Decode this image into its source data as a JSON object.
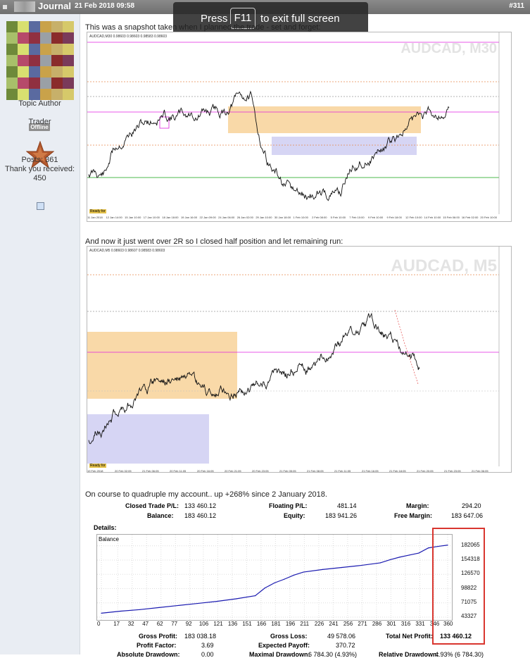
{
  "header": {
    "username": "Journal",
    "date": "21 Feb 2018 09:58",
    "post_number": "#311"
  },
  "overlay": {
    "press": "Press",
    "key": "F11",
    "exit": "to exit full screen"
  },
  "sidebar": {
    "role": "Topic Author",
    "status": "Offline",
    "rank": "Trader",
    "posts": "Posts: 361",
    "thanks_label": "Thank you received:",
    "thanks_count": "450"
  },
  "post": {
    "text1": "This was a snapshot taken when I planned the trade - set and forget:",
    "text2": "And now it just went over 2R so I closed half position and let remaining run:",
    "text3": "On course to quadruple my account.. up +268% since 2 January 2018."
  },
  "chart1": {
    "watermark": "AUDCAD, M30",
    "header": "AUDCAD,M30 0.98603 0.98603 0.98583 0.98603",
    "tag": "Ready for",
    "x_labels": [
      "11 Jan 2018",
      "12 Jan 14:00",
      "15 Jan 10:00",
      "17 Jan 10:00",
      "18 Jan 18:00",
      "19 Jan 16:00",
      "22 Jan 09:00",
      "24 Jan 06:00",
      "26 Jan 02:00",
      "29 Jan 10:00",
      "30 Jan 18:00",
      "1 Feb 10:00",
      "2 Feb 08:00",
      "5 Feb 10:00",
      "7 Feb 10:00",
      "9 Feb 10:00",
      "9 Feb 18:00",
      "12 Feb 10:00",
      "14 Feb 10:00",
      "15 Feb 06:00",
      "16 Feb 02:00",
      "20 Feb 10:00"
    ]
  },
  "chart2": {
    "watermark": "AUDCAD, M5",
    "header": "AUDCAD,M5 0.98603 0.98607 0.98583 0.98603",
    "tag": "Ready for",
    "x_labels": [
      "19 Feb 2018",
      "20 Feb 02:05",
      "21 Feb 06:05",
      "20 Feb 11:05",
      "20 Feb 16:05",
      "20 Feb 21:05",
      "20 Feb 23:05",
      "21 Feb 05:05",
      "21 Feb 08:05",
      "21 Feb 11:05",
      "21 Feb 16:05",
      "21 Feb 18:05",
      "21 Feb 20:05",
      "21 Feb 23:05",
      "21 Feb 06:05"
    ]
  },
  "account": {
    "closed_label": "Closed Trade P/L:",
    "closed": "133 460.12",
    "floating_label": "Floating P/L:",
    "floating": "481.14",
    "margin_label": "Margin:",
    "margin": "294.20",
    "balance_label": "Balance:",
    "balance": "183 460.12",
    "equity_label": "Equity:",
    "equity": "183 941.26",
    "free_label": "Free Margin:",
    "free": "183 647.06",
    "details": "Details:",
    "legend": "Balance"
  },
  "stats": {
    "gross_profit_label": "Gross Profit:",
    "gross_profit": "183 038.18",
    "gross_loss_label": "Gross Loss:",
    "gross_loss": "49 578.06",
    "net_label": "Total Net Profit:",
    "net": "133 460.12",
    "pf_label": "Profit Factor:",
    "pf": "3.69",
    "ep_label": "Expected Payoff:",
    "ep": "370.72",
    "abs_label": "Absolute Drawdown:",
    "abs": "0.00",
    "max_label": "Maximal Drawdown:",
    "max": "6 784.30 (4.93%)",
    "rel_label": "Relative Drawdown:",
    "rel": "4.93% (6 784.30)"
  },
  "chart_data": {
    "type": "line",
    "title": "",
    "legend": "Balance",
    "x_ticks": [
      0,
      17,
      32,
      47,
      62,
      77,
      92,
      106,
      121,
      136,
      151,
      166,
      181,
      196,
      211,
      226,
      241,
      256,
      271,
      286,
      301,
      316,
      331,
      346,
      360
    ],
    "y_ticks": [
      43327,
      71075,
      98822,
      126570,
      154318,
      182065
    ],
    "ylim": [
      43327,
      190000
    ],
    "xlim": [
      0,
      360
    ],
    "x": [
      0,
      20,
      40,
      60,
      80,
      100,
      120,
      140,
      160,
      170,
      180,
      190,
      200,
      210,
      230,
      250,
      270,
      290,
      300,
      310,
      320,
      330,
      340,
      350,
      360
    ],
    "values": [
      51000,
      55000,
      58000,
      62000,
      66000,
      70000,
      74000,
      79000,
      85000,
      100000,
      110000,
      117000,
      125000,
      131000,
      136000,
      140000,
      144000,
      149000,
      155000,
      160000,
      164000,
      168000,
      178000,
      181000,
      183460
    ]
  },
  "colors": {
    "topbar": "#7a7a7a",
    "sidebar": "#e9edf3",
    "balance_line": "#1a1ab0",
    "highlight": "#d9362f",
    "zone_orange": "#f9d9a8",
    "zone_blue": "#c9c8f0",
    "level_magenta": "#e020e0",
    "level_green": "#10a010"
  }
}
